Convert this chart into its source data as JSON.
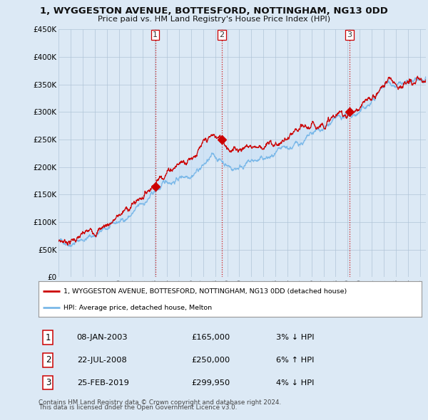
{
  "title": "1, WYGGESTON AVENUE, BOTTESFORD, NOTTINGHAM, NG13 0DD",
  "subtitle": "Price paid vs. HM Land Registry's House Price Index (HPI)",
  "legend_line1": "1, WYGGESTON AVENUE, BOTTESFORD, NOTTINGHAM, NG13 0DD (detached house)",
  "legend_line2": "HPI: Average price, detached house, Melton",
  "footer1": "Contains HM Land Registry data © Crown copyright and database right 2024.",
  "footer2": "This data is licensed under the Open Government Licence v3.0.",
  "transactions": [
    {
      "num": 1,
      "date": "08-JAN-2003",
      "price": "£165,000",
      "hpi": "3% ↓ HPI"
    },
    {
      "num": 2,
      "date": "22-JUL-2008",
      "price": "£250,000",
      "hpi": "6% ↑ HPI"
    },
    {
      "num": 3,
      "date": "25-FEB-2019",
      "price": "£299,950",
      "hpi": "4% ↓ HPI"
    }
  ],
  "transaction_dates_decimal": [
    2003.03,
    2008.56,
    2019.15
  ],
  "transaction_prices": [
    165000,
    250000,
    299950
  ],
  "hpi_color": "#7ab8e8",
  "price_color": "#cc0000",
  "fill_color": "#c8dff5",
  "vline_color": "#cc0000",
  "background_color": "#dce9f5",
  "plot_bg": "#dce9f5",
  "grid_color": "#b0c4d8",
  "ylim": [
    0,
    450000
  ],
  "xlim_start": 1995.0,
  "xlim_end": 2025.5
}
